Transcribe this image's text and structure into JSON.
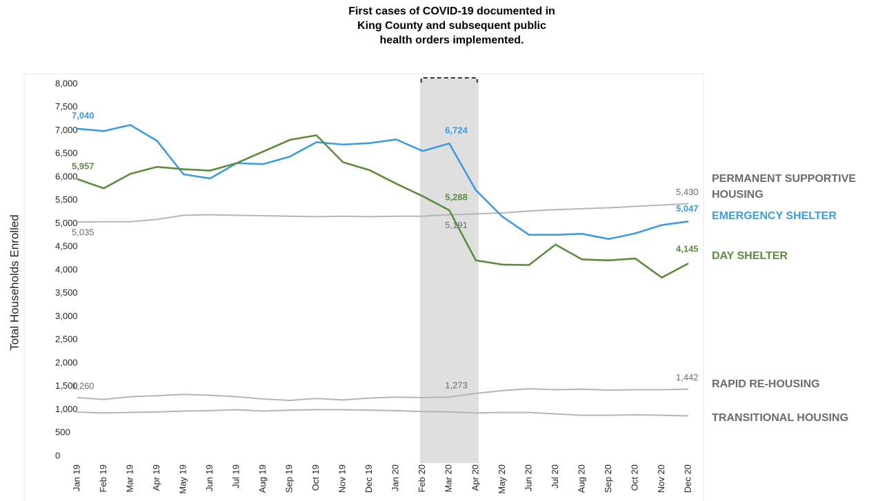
{
  "chart_data": {
    "type": "line",
    "annotation": "First cases of COVID-19 documented in King County and subsequent public health orders implemented.",
    "shaded_range": [
      "Feb 20",
      "Apr 20"
    ],
    "y_label": "Total Households Enrolled",
    "categories": [
      "Jan 19",
      "Feb 19",
      "Mar 19",
      "Apr 19",
      "May 19",
      "Jun 19",
      "Jul 19",
      "Aug 19",
      "Sep 19",
      "Oct 19",
      "Nov 19",
      "Dec 19",
      "Jan 20",
      "Feb 20",
      "Mar 20",
      "Apr 20",
      "May 20",
      "Jun 20",
      "Jul 20",
      "Aug 20",
      "Sep 20",
      "Oct 20",
      "Nov 20",
      "Dec 20"
    ],
    "ylim": [
      0,
      8000
    ],
    "yticks": [
      0,
      500,
      {
        "value": 1000,
        "label": "1,000"
      },
      {
        "value": 1500,
        "label": "1,500"
      },
      {
        "value": 2000,
        "label": "2,000"
      },
      {
        "value": 2500,
        "label": "2,500"
      },
      {
        "value": 3000,
        "label": "3,000"
      },
      {
        "value": 3500,
        "label": "3,500"
      },
      {
        "value": 4000,
        "label": "4,000"
      },
      {
        "value": 4500,
        "label": "4,500"
      },
      {
        "value": 5000,
        "label": "5,000"
      },
      {
        "value": 5500,
        "label": "5,500"
      },
      {
        "value": 6000,
        "label": "6,000"
      },
      {
        "value": 6500,
        "label": "6,500"
      },
      {
        "value": 7000,
        "label": "7,000"
      },
      {
        "value": 7500,
        "label": "7,500"
      },
      {
        "value": 8000,
        "label": "8,000"
      }
    ],
    "series": [
      {
        "name": "PERMANENT SUPPORTIVE HOUSING",
        "color": "#b5b5b5",
        "label_color": "#6b6b6b",
        "values": [
          5035,
          5040,
          5040,
          5090,
          5180,
          5190,
          5180,
          5170,
          5160,
          5150,
          5160,
          5150,
          5160,
          5160,
          5191,
          5210,
          5230,
          5270,
          5300,
          5320,
          5340,
          5370,
          5400,
          5430
        ],
        "value_labels": [
          "5,035",
          null,
          null,
          null,
          null,
          null,
          null,
          null,
          null,
          null,
          null,
          null,
          null,
          null,
          "5,191",
          null,
          null,
          null,
          null,
          null,
          null,
          null,
          null,
          "5,430"
        ]
      },
      {
        "name": "EMERGENCY SHELTER",
        "color": "#3d9be0",
        "label_color": "#3d9be0",
        "values": [
          7040,
          6990,
          7120,
          6780,
          6060,
          5970,
          6300,
          6280,
          6440,
          6750,
          6700,
          6730,
          6810,
          6560,
          6724,
          5720,
          5150,
          4760,
          4760,
          4780,
          4670,
          4790,
          4970,
          5047
        ],
        "value_labels": [
          "7,040",
          null,
          null,
          null,
          null,
          null,
          null,
          null,
          null,
          null,
          null,
          null,
          null,
          null,
          "6,724",
          null,
          null,
          null,
          null,
          null,
          null,
          null,
          null,
          "5,047"
        ]
      },
      {
        "name": "DAY SHELTER",
        "color": "#5b8c3e",
        "label_color": "#5b8c3e",
        "values": [
          5957,
          5760,
          6070,
          6220,
          6170,
          6140,
          6300,
          6550,
          6800,
          6900,
          6320,
          6150,
          5860,
          5590,
          5288,
          4210,
          4120,
          4110,
          4550,
          4230,
          4210,
          4250,
          3840,
          4145
        ],
        "value_labels": [
          "5,957",
          null,
          null,
          null,
          null,
          null,
          null,
          null,
          null,
          null,
          null,
          null,
          null,
          null,
          "5,288",
          null,
          null,
          null,
          null,
          null,
          null,
          null,
          null,
          "4,145"
        ]
      },
      {
        "name": "RAPID RE-HOUSING",
        "color": "#b5b5b5",
        "label_color": "#6b6b6b",
        "values": [
          1260,
          1220,
          1280,
          1300,
          1330,
          1310,
          1280,
          1230,
          1200,
          1240,
          1210,
          1250,
          1270,
          1260,
          1273,
          1350,
          1410,
          1450,
          1430,
          1440,
          1420,
          1430,
          1430,
          1442
        ],
        "value_labels": [
          "1,260",
          null,
          null,
          null,
          null,
          null,
          null,
          null,
          null,
          null,
          null,
          null,
          null,
          null,
          "1,273",
          null,
          null,
          null,
          null,
          null,
          null,
          null,
          null,
          "1,442"
        ]
      },
      {
        "name": "TRANSITIONAL HOUSING",
        "color": "#b5b5b5",
        "label_color": "#6b6b6b",
        "values": [
          949,
          930,
          940,
          950,
          970,
          980,
          1000,
          970,
          990,
          1000,
          1000,
          990,
          980,
          960,
          954,
          930,
          940,
          940,
          910,
          880,
          880,
          890,
          880,
          866
        ]
      }
    ]
  }
}
